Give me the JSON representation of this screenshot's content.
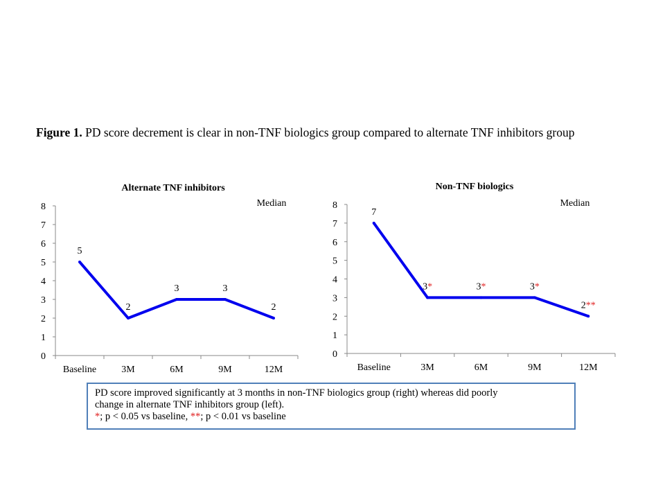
{
  "caption": {
    "label": "Figure 1.",
    "text": "PD score decrement is clear in non-TNF biologics group compared to alternate TNF inhibitors group"
  },
  "chart_data": [
    {
      "type": "line",
      "title": "Alternate TNF inhibitors",
      "legend": "Median",
      "categories": [
        "Baseline",
        "3M",
        "6M",
        "9M",
        "12M"
      ],
      "values": [
        5,
        2,
        3,
        3,
        2
      ],
      "data_labels": [
        "5",
        "2",
        "3",
        "3",
        "2"
      ],
      "significance": [
        "",
        "",
        "",
        "",
        ""
      ],
      "yticks": [
        "0",
        "1",
        "2",
        "3",
        "4",
        "5",
        "6",
        "7",
        "8"
      ],
      "ylim": [
        0,
        8
      ],
      "color": "#0000ee"
    },
    {
      "type": "line",
      "title": "Non-TNF biologics",
      "legend": "Median",
      "categories": [
        "Baseline",
        "3M",
        "6M",
        "9M",
        "12M"
      ],
      "values": [
        7,
        3,
        3,
        3,
        2
      ],
      "data_labels": [
        "7",
        "3",
        "3",
        "3",
        "2"
      ],
      "significance": [
        "",
        "*",
        "*",
        "*",
        "**"
      ],
      "yticks": [
        "0",
        "1",
        "2",
        "3",
        "4",
        "5",
        "6",
        "7",
        "8"
      ],
      "ylim": [
        0,
        8
      ],
      "color": "#0000ee"
    }
  ],
  "note": {
    "line1": "PD score improved significantly at 3 months in non-TNF biologics group (right) whereas did poorly",
    "line2": "change in alternate TNF inhibitors group (left).",
    "star1": "*",
    "text1": "; p < 0.05 vs baseline, ",
    "star2": "**",
    "text2": "; p < 0.01 vs baseline"
  },
  "colors": {
    "accent_red": "#e02020",
    "box_border": "#4f7fb8",
    "line_blue": "#0000ee"
  }
}
